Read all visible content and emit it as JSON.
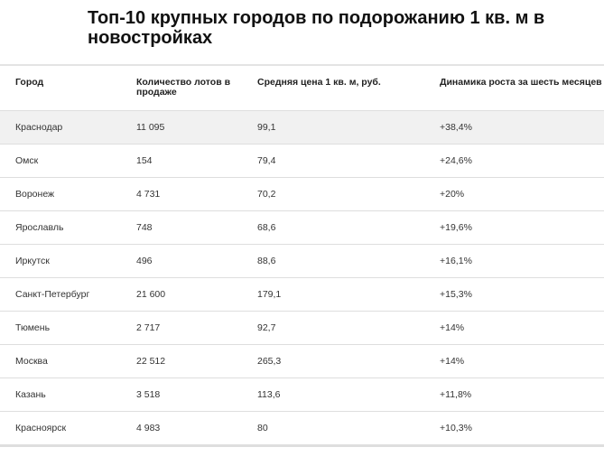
{
  "title": "Топ-10 крупных городов по подорожанию 1 кв. м в новостройках",
  "table": {
    "headers": [
      "Город",
      "Количество лотов в продаже",
      "Средняя цена 1 кв. м, руб.",
      "Динамика роста за шесть месяцев"
    ],
    "highlight_color": "#f1f1f1",
    "rows": [
      [
        "Краснодар",
        "11 095",
        "99,1",
        "+38,4%"
      ],
      [
        "Омск",
        "154",
        "79,4",
        "+24,6%"
      ],
      [
        "Воронеж",
        "4 731",
        "70,2",
        "+20%"
      ],
      [
        "Ярославль",
        "748",
        "68,6",
        "+19,6%"
      ],
      [
        "Иркутск",
        "496",
        "88,6",
        "+16,1%"
      ],
      [
        "Санкт-Петербург",
        "21 600",
        "179,1",
        "+15,3%"
      ],
      [
        "Тюмень",
        "2 717",
        "92,7",
        "+14%"
      ],
      [
        "Москва",
        "22 512",
        "265,3",
        "+14%"
      ],
      [
        "Казань",
        "3 518",
        "113,6",
        "+11,8%"
      ],
      [
        "Красноярск",
        "4 983",
        "80",
        "+10,3%"
      ]
    ]
  }
}
